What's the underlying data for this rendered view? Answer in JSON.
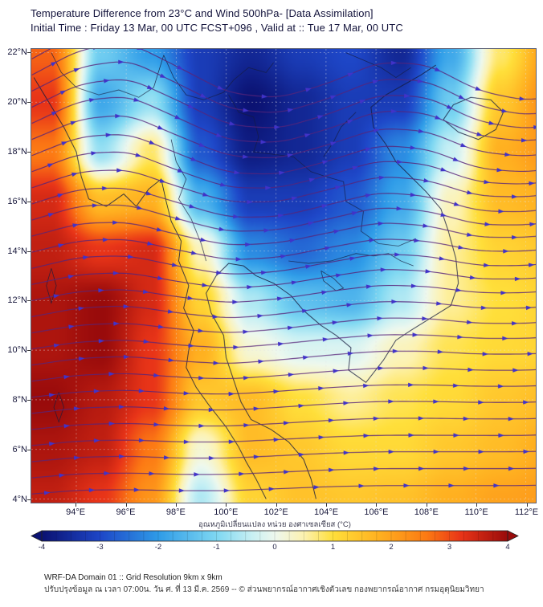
{
  "footer": {
    "line1": "WRF-DA Domain 01 :: Grid Resolution 9km x 9km",
    "line2": "ปรับปรุงข้อมูล ณ เวลา 07:00น. วัน ศ. ที่ 13 มี.ค. 2569 -- © ส่วนพยากรณ์อากาศเชิงตัวเลข กองพยากรณ์อากาศ กรมอุตุนิยมวิทยา"
  },
  "chart_data": {
    "type": "heatmap",
    "title": "Temperature Difference from 23°C and Wind 500hPa- [Data Assimilation]",
    "subtitle": "Initial Time : Friday 13 Mar, 00 UTC FCST+096 , Valid at ::  Tue 17 Mar, 00 UTC",
    "x_axis": {
      "range": [
        92.2,
        112.4
      ],
      "tick_values": [
        94,
        96,
        98,
        100,
        102,
        104,
        106,
        108,
        110,
        112
      ],
      "tick_labels": [
        "94°E",
        "96°E",
        "98°E",
        "100°E",
        "102°E",
        "104°E",
        "106°E",
        "108°E",
        "110°E",
        "112°E"
      ]
    },
    "y_axis": {
      "range": [
        3.85,
        22.15
      ],
      "tick_values": [
        22,
        20,
        18,
        16,
        14,
        12,
        10,
        8,
        6,
        4
      ],
      "tick_labels": [
        "22°N",
        "20°N",
        "18°N",
        "16°N",
        "14°N",
        "12°N",
        "10°N",
        "8°N",
        "6°N",
        "4°N"
      ]
    },
    "grid_lines": {
      "color": "rgba(228,228,228,0.5)",
      "dash": [
        2,
        3
      ]
    },
    "temperature": {
      "units": "°C",
      "lons": [
        93,
        95,
        97,
        99,
        101,
        103,
        105,
        107,
        109,
        111,
        113
      ],
      "lats": [
        22,
        20,
        18,
        16,
        14,
        12,
        10,
        8,
        6,
        4
      ],
      "values": [
        [
          2.8,
          -1.2,
          -2.0,
          -3.2,
          -3.6,
          -3.2,
          -3.0,
          -3.6,
          -1.8,
          0.8,
          2.2
        ],
        [
          3.2,
          -1.8,
          -0.8,
          -3.2,
          -4.0,
          -3.6,
          -3.2,
          -3.2,
          -1.2,
          1.4,
          2.4
        ],
        [
          2.6,
          -0.8,
          0.8,
          -2.8,
          -3.8,
          -3.6,
          -3.2,
          -2.2,
          -0.4,
          1.8,
          2.2
        ],
        [
          3.4,
          1.6,
          1.8,
          -1.6,
          -3.2,
          -3.2,
          -2.8,
          -1.8,
          0.4,
          1.6,
          1.8
        ],
        [
          3.6,
          3.2,
          3.4,
          0.4,
          -2.2,
          -2.6,
          -2.2,
          -1.2,
          0.6,
          1.2,
          1.4
        ],
        [
          3.8,
          4.0,
          3.4,
          1.2,
          -0.6,
          -1.4,
          -1.6,
          -0.6,
          0.6,
          1.0,
          1.2
        ],
        [
          3.8,
          4.0,
          3.2,
          1.8,
          0.2,
          -0.2,
          -0.2,
          0.4,
          0.9,
          1.1,
          1.2
        ],
        [
          4.0,
          3.7,
          3.2,
          1.4,
          1.6,
          1.0,
          0.6,
          0.9,
          1.1,
          1.4,
          1.6
        ],
        [
          3.8,
          3.6,
          2.6,
          0.2,
          1.6,
          1.4,
          1.1,
          1.1,
          1.4,
          1.6,
          1.9
        ],
        [
          3.6,
          3.2,
          2.2,
          -0.6,
          1.2,
          1.5,
          1.4,
          1.5,
          1.8,
          2.0,
          2.1
        ]
      ]
    },
    "colormap": {
      "stops": [
        [
          -4.0,
          "#0b1272"
        ],
        [
          -3.0,
          "#1e47c8"
        ],
        [
          -2.0,
          "#2f9ce8"
        ],
        [
          -1.0,
          "#7fd8f2"
        ],
        [
          -0.4,
          "#c8f0f4"
        ],
        [
          0.0,
          "#eef8ee"
        ],
        [
          0.5,
          "#fdf2b0"
        ],
        [
          1.0,
          "#ffdf3a"
        ],
        [
          1.8,
          "#ffb020"
        ],
        [
          2.6,
          "#fc7a14"
        ],
        [
          3.2,
          "#e83418"
        ],
        [
          4.0,
          "#990b0b"
        ]
      ]
    },
    "colorbar": {
      "title": "อุณหภูมิเปลี่ยนแปลง หน่วย องศาเซลเซียส (°C)",
      "ticks": [
        -4,
        -3,
        -2,
        -1,
        0,
        1,
        2,
        3,
        4
      ],
      "range": [
        -4,
        4
      ]
    },
    "wind": {
      "description": "500 hPa streamlines, predominantly westerly flow with embedded troughs and ridges",
      "lons": [
        93,
        95,
        97,
        99,
        101,
        103,
        105,
        107,
        109,
        111,
        113
      ],
      "lats": [
        22,
        20,
        18,
        16,
        14,
        12,
        10,
        8,
        6,
        4
      ],
      "u_base": 1.0,
      "v": [
        [
          0.55,
          0.15,
          -0.5,
          -0.55,
          -0.15,
          0.3,
          0.45,
          -0.05,
          -0.55,
          -0.35,
          0.2
        ],
        [
          0.5,
          0.1,
          -0.45,
          -0.5,
          -0.1,
          0.3,
          0.4,
          -0.05,
          -0.5,
          -0.2,
          0.2
        ],
        [
          0.4,
          0.05,
          -0.4,
          -0.4,
          -0.05,
          0.28,
          0.32,
          -0.08,
          -0.4,
          -0.1,
          0.18
        ],
        [
          0.32,
          0.02,
          -0.3,
          -0.3,
          0.0,
          0.25,
          0.25,
          -0.08,
          -0.3,
          -0.02,
          0.15
        ],
        [
          0.25,
          0.03,
          -0.22,
          -0.2,
          0.05,
          0.2,
          0.18,
          -0.05,
          -0.2,
          0.0,
          0.12
        ],
        [
          0.2,
          0.04,
          -0.15,
          -0.12,
          0.08,
          0.15,
          0.12,
          -0.02,
          -0.12,
          0.0,
          0.1
        ],
        [
          0.15,
          0.04,
          -0.1,
          -0.06,
          0.08,
          0.1,
          0.08,
          0.0,
          -0.06,
          0.0,
          0.06
        ],
        [
          0.12,
          0.03,
          -0.06,
          -0.02,
          0.06,
          0.07,
          0.05,
          0.0,
          -0.02,
          0.0,
          0.05
        ],
        [
          0.1,
          0.02,
          -0.04,
          0.0,
          0.05,
          0.05,
          0.03,
          0.0,
          0.0,
          0.0,
          0.04
        ],
        [
          0.08,
          0.01,
          -0.02,
          0.0,
          0.04,
          0.04,
          0.02,
          0.0,
          0.0,
          0.0,
          0.03
        ]
      ],
      "seed_start": 4.2,
      "seed_step": 0.65,
      "seed_end": 22.1,
      "line_color": "rgba(88,36,122,0.85)",
      "arrow_color": "#4133c8",
      "arrow_spacing_px": 56
    },
    "map_overlay": {
      "stroke_color": "rgba(22,28,62,0.9)",
      "coastlines": [
        [
          [
            92.3,
            21.0
          ],
          [
            92.9,
            20.0
          ],
          [
            93.5,
            19.0
          ],
          [
            94.0,
            18.0
          ],
          [
            94.2,
            17.0
          ],
          [
            94.5,
            16.1
          ],
          [
            95.2,
            15.8
          ],
          [
            95.9,
            16.3
          ],
          [
            96.4,
            15.8
          ],
          [
            96.9,
            16.5
          ],
          [
            97.4,
            16.9
          ],
          [
            97.6,
            16.0
          ],
          [
            97.8,
            15.2
          ],
          [
            98.2,
            14.4
          ],
          [
            98.1,
            13.6
          ],
          [
            98.5,
            12.6
          ],
          [
            98.3,
            11.7
          ],
          [
            98.7,
            10.8
          ],
          [
            98.5,
            10.0
          ],
          [
            98.4,
            9.3
          ],
          [
            98.8,
            8.5
          ],
          [
            99.3,
            7.8
          ],
          [
            100.0,
            6.9
          ],
          [
            100.5,
            6.1
          ],
          [
            100.8,
            5.5
          ],
          [
            101.2,
            4.8
          ],
          [
            101.6,
            4.0
          ]
        ],
        [
          [
            103.6,
            4.0
          ],
          [
            103.4,
            4.8
          ],
          [
            103.1,
            5.6
          ],
          [
            102.5,
            6.3
          ],
          [
            101.8,
            6.8
          ],
          [
            101.0,
            7.2
          ],
          [
            100.6,
            7.9
          ],
          [
            100.3,
            8.8
          ],
          [
            100.0,
            9.7
          ],
          [
            99.9,
            10.6
          ],
          [
            99.4,
            11.5
          ],
          [
            99.2,
            12.3
          ],
          [
            99.6,
            13.0
          ],
          [
            100.1,
            13.5
          ],
          [
            100.7,
            13.4
          ],
          [
            101.2,
            13.0
          ],
          [
            101.9,
            12.7
          ],
          [
            102.6,
            12.2
          ],
          [
            103.1,
            11.6
          ],
          [
            103.8,
            11.0
          ],
          [
            104.4,
            10.6
          ],
          [
            105.0,
            10.1
          ],
          [
            104.9,
            9.2
          ],
          [
            105.6,
            8.7
          ],
          [
            106.3,
            9.6
          ],
          [
            106.8,
            10.4
          ],
          [
            107.4,
            10.8
          ],
          [
            108.2,
            11.3
          ],
          [
            109.0,
            11.8
          ],
          [
            109.3,
            12.7
          ],
          [
            109.2,
            13.7
          ],
          [
            108.9,
            14.8
          ],
          [
            108.6,
            15.7
          ],
          [
            108.0,
            16.4
          ],
          [
            107.4,
            17.0
          ],
          [
            106.8,
            17.6
          ],
          [
            106.4,
            18.3
          ],
          [
            105.9,
            19.0
          ],
          [
            105.8,
            19.8
          ],
          [
            106.4,
            20.3
          ],
          [
            107.1,
            20.7
          ],
          [
            107.8,
            21.1
          ],
          [
            108.4,
            21.5
          ]
        ],
        [
          [
            108.7,
            19.3
          ],
          [
            109.3,
            18.8
          ],
          [
            110.1,
            18.5
          ],
          [
            110.8,
            18.9
          ],
          [
            111.1,
            19.6
          ],
          [
            110.6,
            20.1
          ],
          [
            109.8,
            20.2
          ],
          [
            109.1,
            19.9
          ],
          [
            108.7,
            19.3
          ]
        ]
      ],
      "borders": [
        [
          [
            97.5,
            21.9
          ],
          [
            97.9,
            21.0
          ],
          [
            98.4,
            20.3
          ],
          [
            99.1,
            20.1
          ],
          [
            99.9,
            20.4
          ],
          [
            100.3,
            20.9
          ],
          [
            100.9,
            21.4
          ],
          [
            101.6,
            21.2
          ],
          [
            101.9,
            21.6
          ]
        ],
        [
          [
            100.1,
            20.3
          ],
          [
            100.5,
            19.6
          ],
          [
            101.1,
            19.4
          ],
          [
            101.3,
            18.6
          ],
          [
            101.1,
            18.0
          ],
          [
            101.9,
            17.9
          ],
          [
            102.7,
            17.8
          ],
          [
            103.4,
            17.2
          ],
          [
            104.0,
            17.0
          ],
          [
            104.7,
            16.8
          ],
          [
            104.8,
            16.0
          ],
          [
            105.5,
            15.6
          ],
          [
            105.4,
            14.8
          ],
          [
            106.1,
            14.3
          ],
          [
            106.9,
            14.2
          ],
          [
            107.6,
            14.5
          ]
        ],
        [
          [
            97.8,
            18.5
          ],
          [
            98.0,
            17.6
          ],
          [
            98.4,
            16.9
          ],
          [
            98.1,
            16.1
          ],
          [
            98.6,
            15.3
          ],
          [
            99.0,
            14.3
          ],
          [
            99.2,
            13.6
          ]
        ],
        [
          [
            102.5,
            13.6
          ],
          [
            103.3,
            13.5
          ],
          [
            104.2,
            13.6
          ],
          [
            105.2,
            13.9
          ],
          [
            105.9,
            13.8
          ],
          [
            106.5,
            13.9
          ],
          [
            107.0,
            13.6
          ],
          [
            107.5,
            13.4
          ]
        ],
        [
          [
            105.2,
            19.6
          ],
          [
            104.6,
            19.0
          ],
          [
            104.3,
            18.4
          ],
          [
            103.9,
            17.8
          ]
        ],
        [
          [
            104.8,
            22.0
          ],
          [
            105.5,
            21.7
          ],
          [
            106.2,
            21.4
          ],
          [
            106.8,
            21.0
          ],
          [
            107.4,
            21.4
          ]
        ],
        [
          [
            93.0,
            22.0
          ],
          [
            93.4,
            21.2
          ],
          [
            94.0,
            20.6
          ],
          [
            94.9,
            20.3
          ],
          [
            95.7,
            20.5
          ],
          [
            96.5,
            20.2
          ],
          [
            97.1,
            20.6
          ],
          [
            97.5,
            21.9
          ]
        ]
      ],
      "minor": [
        [
          [
            103.8,
            13.2
          ],
          [
            104.3,
            12.9
          ],
          [
            104.7,
            12.5
          ],
          [
            104.4,
            12.4
          ],
          [
            103.9,
            12.8
          ],
          [
            103.8,
            13.2
          ]
        ],
        [
          [
            93.0,
            13.3
          ],
          [
            93.2,
            12.6
          ],
          [
            93.0,
            11.9
          ],
          [
            92.8,
            12.6
          ],
          [
            93.0,
            13.3
          ]
        ],
        [
          [
            93.3,
            8.3
          ],
          [
            93.5,
            7.7
          ],
          [
            93.3,
            7.1
          ],
          [
            93.1,
            7.7
          ],
          [
            93.3,
            8.3
          ]
        ]
      ]
    }
  }
}
